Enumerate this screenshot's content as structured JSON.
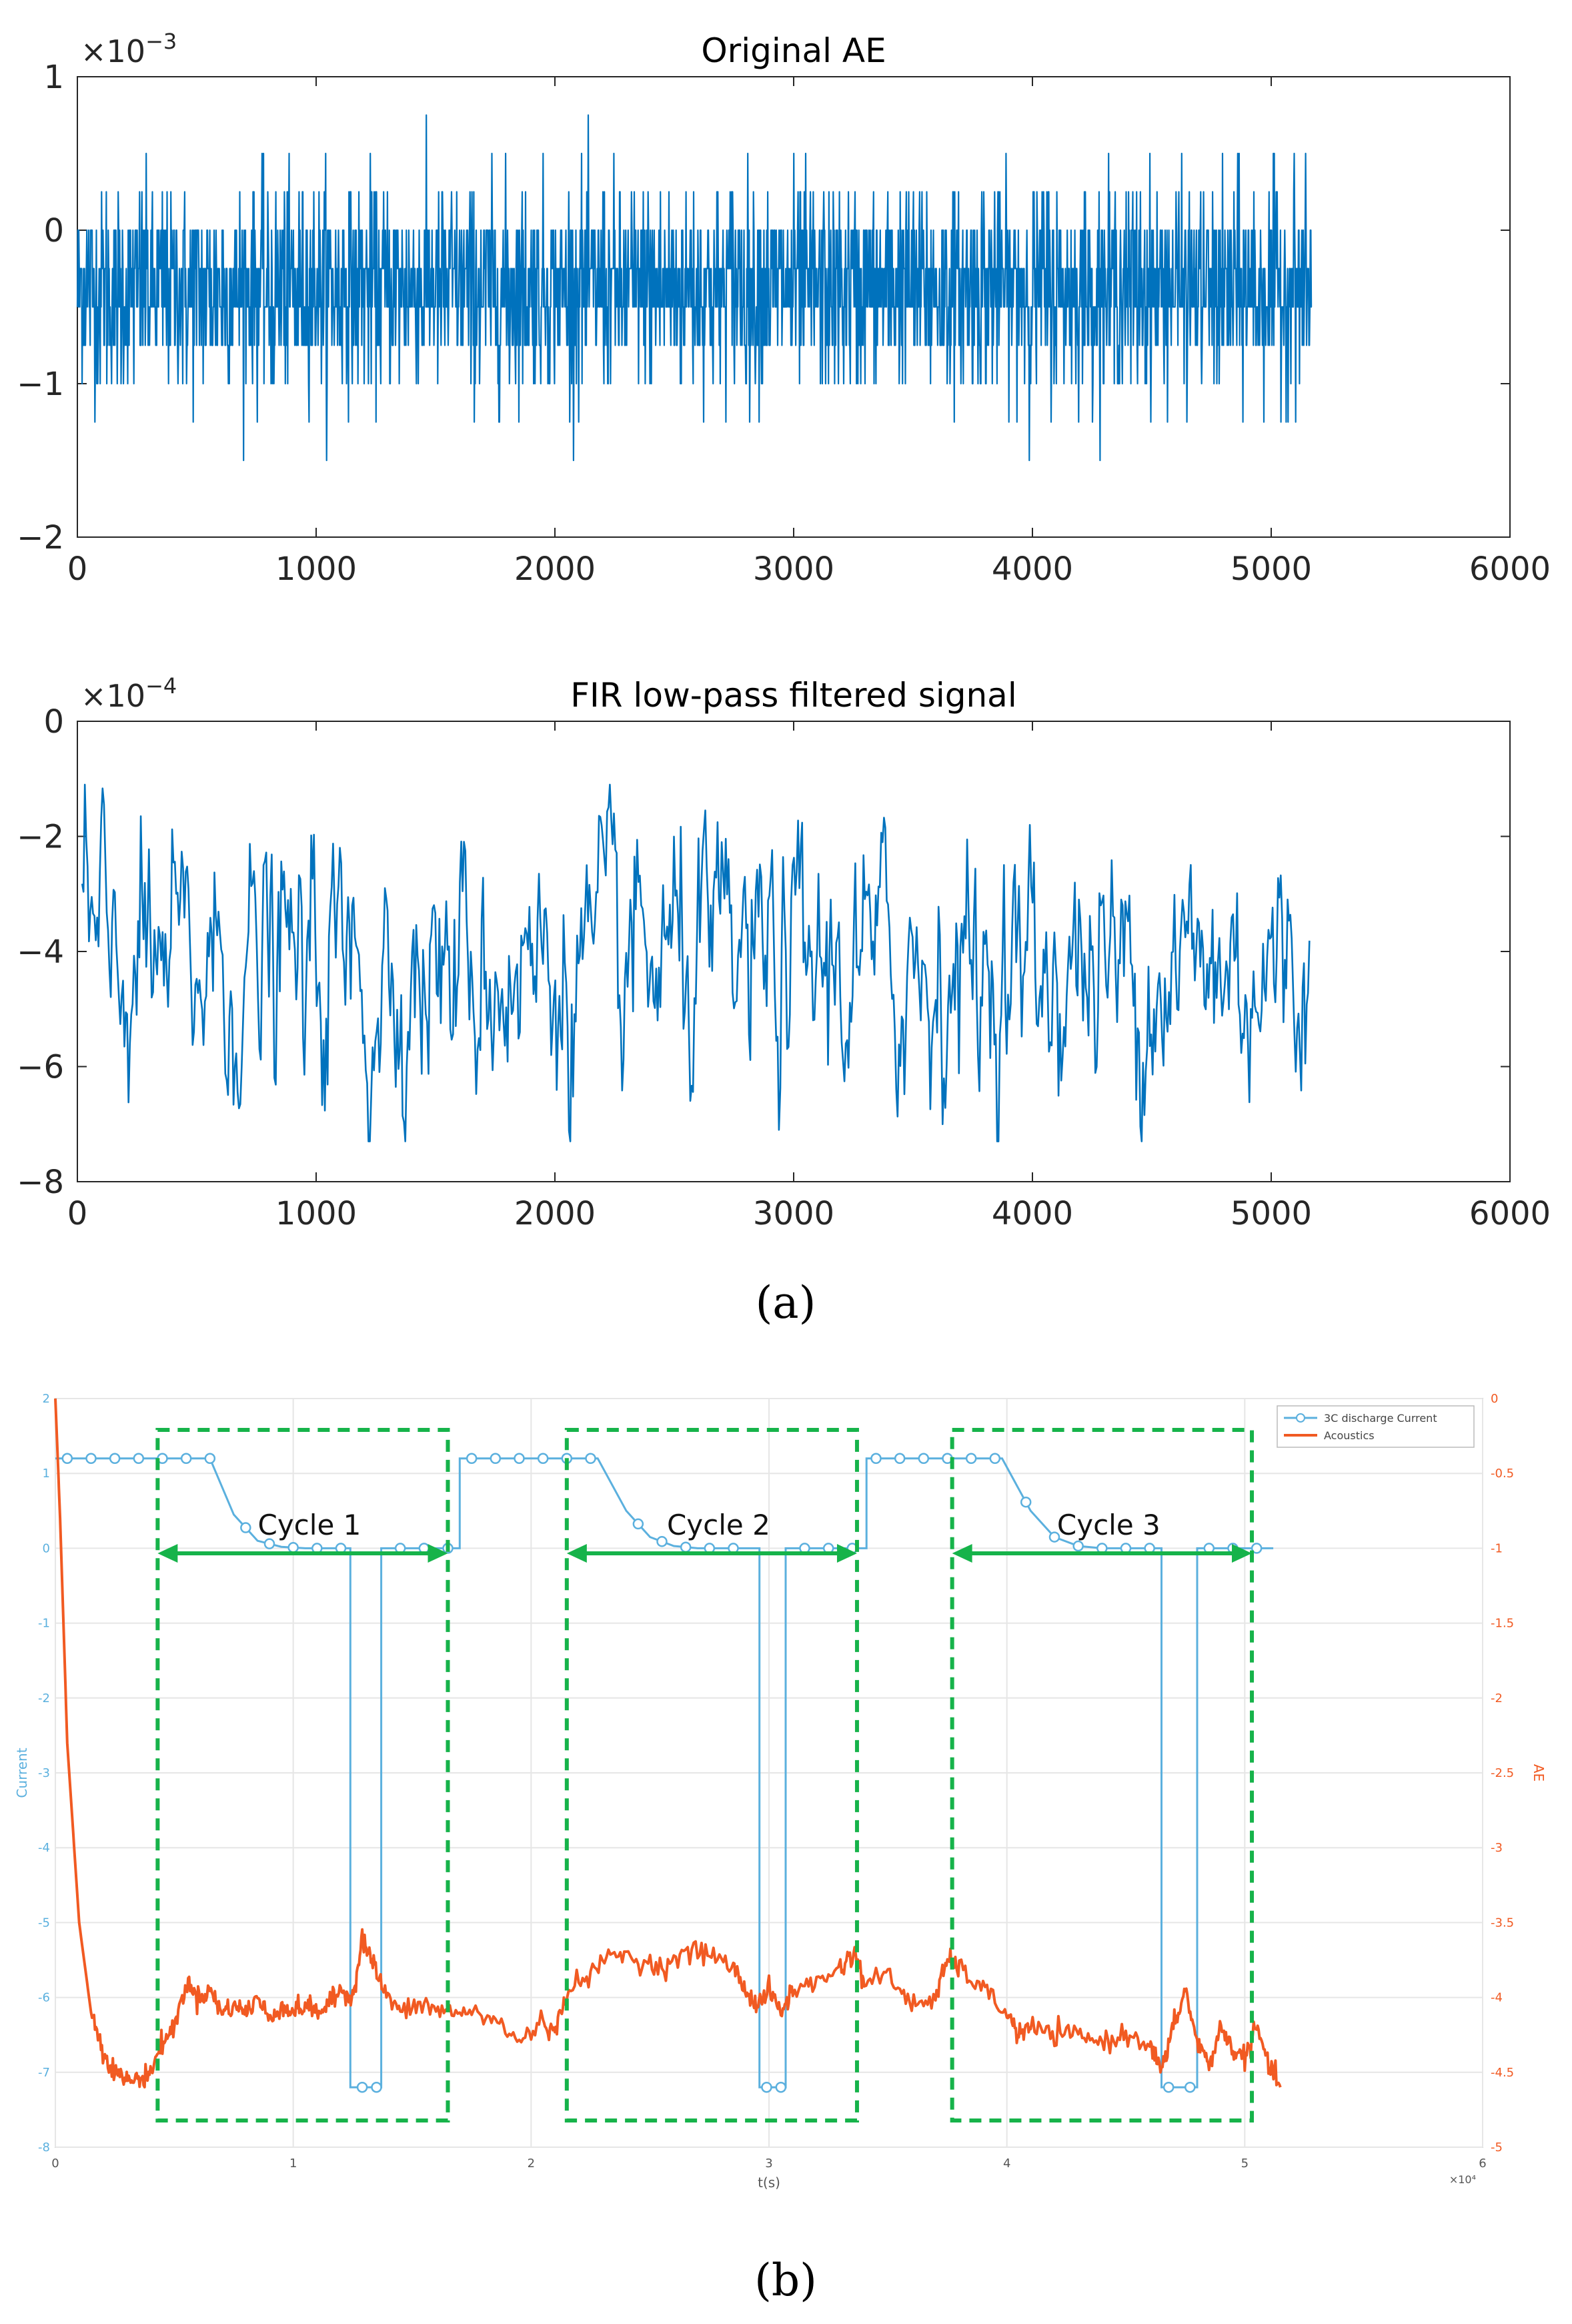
{
  "chart_data": [
    {
      "type": "line",
      "title": "Original AE",
      "xlabel": "",
      "ylabel": "",
      "exponent": "-3",
      "xlim": [
        0,
        6000
      ],
      "ylim": [
        -2,
        1
      ],
      "x_ticks": [
        "0",
        "1000",
        "2000",
        "3000",
        "4000",
        "5000",
        "6000"
      ],
      "y_ticks": [
        "−2",
        "−1",
        "0",
        "1"
      ],
      "series": [
        {
          "color": "#0072BD",
          "n_points": 5170,
          "x_range": [
            0,
            5170
          ],
          "mean": -0.38,
          "band": [
            -0.85,
            0.1
          ],
          "peak_max": 0.88,
          "peak_min": -1.5
        }
      ],
      "grid": false
    },
    {
      "type": "line",
      "title": "FIR low-pass filtered signal",
      "xlabel": "",
      "ylabel": "",
      "exponent": "-4",
      "xlim": [
        0,
        6000
      ],
      "ylim": [
        -8,
        0
      ],
      "x_ticks": [
        "0",
        "1000",
        "2000",
        "3000",
        "4000",
        "5000",
        "6000"
      ],
      "y_ticks": [
        "−8",
        "−6",
        "−4",
        "−2",
        "0"
      ],
      "series": [
        {
          "color": "#0072BD",
          "x_range": [
            20,
            5160
          ],
          "mean": -4.3,
          "peak_max": -1.1,
          "peak_min": -7.3
        }
      ],
      "grid": false
    },
    {
      "type": "line",
      "title": "",
      "xlabel": "t(s)",
      "ylabel_left": "Current",
      "ylabel_right": "AE",
      "x_exponent": "×10⁴",
      "xlim": [
        0,
        6
      ],
      "ylim_left": [
        -8,
        2
      ],
      "ylim_right": [
        -5,
        0
      ],
      "x_ticks": [
        "0",
        "1",
        "2",
        "3",
        "4",
        "5",
        "6"
      ],
      "y_ticks_left": [
        "-8",
        "-7",
        "-6",
        "-5",
        "-4",
        "-3",
        "-2",
        "-1",
        "0",
        "1",
        "2"
      ],
      "y_ticks_right": [
        "-5",
        "-4.5",
        "-4",
        "-3.5",
        "-3",
        "-2.5",
        "-2",
        "-1.5",
        "-1",
        "-0.5",
        "0"
      ],
      "grid": true,
      "legend_position": "top-right",
      "series": [
        {
          "name": "3C discharge Current",
          "color": "#5BB0DE",
          "marker": "circle",
          "x": [
            0,
            0.02,
            0.65,
            0.75,
            0.85,
            0.95,
            1.05,
            1.15,
            1.24,
            1.24,
            1.37,
            1.37,
            1.55,
            1.7,
            1.7,
            2.28,
            2.4,
            2.5,
            2.6,
            2.7,
            2.8,
            2.96,
            2.96,
            3.07,
            3.07,
            3.3,
            3.41,
            3.41,
            3.98,
            4.1,
            4.2,
            4.3,
            4.4,
            4.5,
            4.65,
            4.65,
            4.8,
            4.8,
            5.12
          ],
          "y": [
            1.2,
            1.2,
            1.2,
            0.45,
            0.1,
            0.02,
            0,
            0,
            0,
            -7.2,
            -7.2,
            0,
            0,
            0,
            1.2,
            1.2,
            0.5,
            0.15,
            0.03,
            0,
            0,
            0,
            -7.2,
            -7.2,
            0,
            0,
            0,
            1.2,
            1.2,
            0.5,
            0.15,
            0.03,
            0,
            0,
            0,
            -7.2,
            -7.2,
            0,
            0
          ]
        },
        {
          "name": "Acoustics",
          "color": "#F15A22",
          "x": [
            0,
            0.02,
            0.05,
            0.1,
            0.15,
            0.2,
            0.25,
            0.3,
            0.35,
            0.4,
            0.45,
            0.5,
            0.55,
            0.6,
            0.65,
            0.7,
            0.75,
            0.8,
            0.85,
            0.9,
            0.95,
            1.0,
            1.05,
            1.1,
            1.15,
            1.2,
            1.25,
            1.29,
            1.33,
            1.38,
            1.45,
            1.55,
            1.65,
            1.75,
            1.85,
            1.95,
            2.05,
            2.1,
            2.15,
            2.25,
            2.35,
            2.45,
            2.55,
            2.65,
            2.75,
            2.85,
            2.9,
            2.95,
            3.0,
            3.05,
            3.1,
            3.2,
            3.3,
            3.36,
            3.4,
            3.5,
            3.6,
            3.7,
            3.75,
            3.8,
            3.9,
            4.0,
            4.05,
            4.1,
            4.2,
            4.3,
            4.4,
            4.5,
            4.6,
            4.65,
            4.7,
            4.75,
            4.8,
            4.85,
            4.9,
            4.95,
            5.0,
            5.05,
            5.1,
            5.15
          ],
          "y": [
            0.0,
            -0.8,
            -2.3,
            -3.5,
            -4.1,
            -4.35,
            -4.5,
            -4.55,
            -4.55,
            -4.5,
            -4.3,
            -4.2,
            -3.9,
            -4.0,
            -3.95,
            -4.1,
            -4.05,
            -4.1,
            -4.0,
            -4.15,
            -4.05,
            -4.1,
            -4.05,
            -4.1,
            -4.05,
            -3.95,
            -4.0,
            -3.6,
            -3.75,
            -3.95,
            -4.1,
            -4.05,
            -4.1,
            -4.1,
            -4.15,
            -4.3,
            -4.15,
            -4.25,
            -3.95,
            -3.85,
            -3.7,
            -3.75,
            -3.8,
            -3.7,
            -3.7,
            -3.8,
            -3.95,
            -4.05,
            -3.95,
            -4.1,
            -3.95,
            -3.9,
            -3.8,
            -3.7,
            -3.9,
            -3.85,
            -4.05,
            -4.0,
            -3.75,
            -3.8,
            -3.95,
            -4.1,
            -4.25,
            -4.2,
            -4.25,
            -4.25,
            -4.3,
            -4.25,
            -4.3,
            -4.5,
            -4.2,
            -3.95,
            -4.3,
            -4.45,
            -4.2,
            -4.35,
            -4.4,
            -4.2,
            -4.45,
            -4.6
          ]
        }
      ],
      "annotations": [
        {
          "label": "Cycle 1",
          "box_x": [
            0.43,
            1.65
          ]
        },
        {
          "label": "Cycle 2",
          "box_x": [
            2.15,
            3.37
          ]
        },
        {
          "label": "Cycle 3",
          "box_x": [
            3.77,
            5.03
          ]
        }
      ],
      "annotation_color": "#16B34A"
    }
  ],
  "figure_labels": {
    "a": "(a)",
    "b": "(b)"
  }
}
